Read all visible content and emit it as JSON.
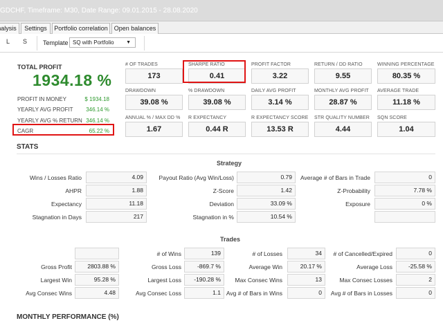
{
  "window": {
    "title": "GDCHF, Timeframe: M30, Date Range: 09.01.2015 - 28.08.2020"
  },
  "tabs": [
    {
      "label": "Analysis"
    },
    {
      "label": "Settings"
    },
    {
      "label": "Portfolio correlation"
    },
    {
      "label": "Open balances"
    }
  ],
  "toolbar": {
    "btn_l": "L",
    "btn_s": "S",
    "template_label": "Template",
    "template_value": "SQ with Portfolio"
  },
  "summary": {
    "total_profit_label": "TOTAL PROFIT",
    "total_profit_value": "1934.18 %",
    "rows": [
      {
        "label": "PROFIT IN MONEY",
        "value": "$ 1934.18"
      },
      {
        "label": "YEARLY AVG PROFIT",
        "value": "346.14 %"
      },
      {
        "label": "YEARLY AVG % RETURN",
        "value": "346.14 %"
      },
      {
        "label": "CAGR",
        "value": "65.22 %"
      }
    ]
  },
  "metrics": [
    {
      "label": "# OF TRADES",
      "value": "173"
    },
    {
      "label": "SHARPE RATIO",
      "value": "0.41"
    },
    {
      "label": "PROFIT FACTOR",
      "value": "3.22"
    },
    {
      "label": "RETURN / DD RATIO",
      "value": "9.55"
    },
    {
      "label": "WINNING PERCENTAGE",
      "value": "80.35 %"
    },
    {
      "label": "DRAWDOWN",
      "value": "39.08 %"
    },
    {
      "label": "% DRAWDOWN",
      "value": "39.08 %"
    },
    {
      "label": "DAILY AVG PROFIT",
      "value": "3.14 %"
    },
    {
      "label": "MONTHLY AVG PROFIT",
      "value": "28.87 %"
    },
    {
      "label": "AVERAGE TRADE",
      "value": "11.18 %"
    },
    {
      "label": "ANNUAL % / MAX DD %",
      "value": "1.67"
    },
    {
      "label": "R EXPECTANCY",
      "value": "0.44 R"
    },
    {
      "label": "R EXPECTANCY SCORE",
      "value": "13.53 R"
    },
    {
      "label": "STR QUALITY NUMBER",
      "value": "4.44"
    },
    {
      "label": "SQN SCORE",
      "value": "1.04"
    }
  ],
  "stats": {
    "title": "STATS",
    "strategy_title": "Strategy",
    "strategy_rows": [
      [
        {
          "label": "Wins / Losses Ratio",
          "value": "4.09"
        },
        {
          "label": "Payout Ratio (Avg Win/Loss)",
          "value": "0.79"
        },
        {
          "label": "Average # of Bars in Trade",
          "value": "0"
        }
      ],
      [
        {
          "label": "AHPR",
          "value": "1.88"
        },
        {
          "label": "Z-Score",
          "value": "1.42"
        },
        {
          "label": "Z-Probability",
          "value": "7.78 %"
        }
      ],
      [
        {
          "label": "Expectancy",
          "value": "11.18"
        },
        {
          "label": "Deviation",
          "value": "33.09 %"
        },
        {
          "label": "Exposure",
          "value": "0 %"
        }
      ],
      [
        {
          "label": "Stagnation in Days",
          "value": "217"
        },
        {
          "label": "Stagnation in %",
          "value": "10.54 %"
        },
        {
          "label": "",
          "value": ""
        }
      ]
    ],
    "trades_title": "Trades",
    "trades_rows": [
      [
        {
          "label": "",
          "value": ""
        },
        {
          "label": "# of Wins",
          "value": "139"
        },
        {
          "label": "# of Losses",
          "value": "34"
        },
        {
          "label": "# of Cancelled/Expired",
          "value": "0"
        }
      ],
      [
        {
          "label": "Gross Profit",
          "value": "2803.88 %"
        },
        {
          "label": "Gross Loss",
          "value": "-869.7 %"
        },
        {
          "label": "Average Win",
          "value": "20.17 %"
        },
        {
          "label": "Average Loss",
          "value": "-25.58 %"
        }
      ],
      [
        {
          "label": "Largest Win",
          "value": "95.28 %"
        },
        {
          "label": "Largest Loss",
          "value": "-190.28 %"
        },
        {
          "label": "Max Consec Wins",
          "value": "13"
        },
        {
          "label": "Max Consec Losses",
          "value": "2"
        }
      ],
      [
        {
          "label": "Avg Consec Wins",
          "value": "4.48"
        },
        {
          "label": "Avg Consec Loss",
          "value": "1.1"
        },
        {
          "label": "Avg # of Bars in Wins",
          "value": "0"
        },
        {
          "label": "Avg # of Bars in Losses",
          "value": "0"
        }
      ]
    ]
  },
  "monthly": {
    "title": "MONTHLY PERFORMANCE (%)"
  },
  "colors": {
    "green": "#2e8b2e",
    "highlight": "#e01414"
  }
}
